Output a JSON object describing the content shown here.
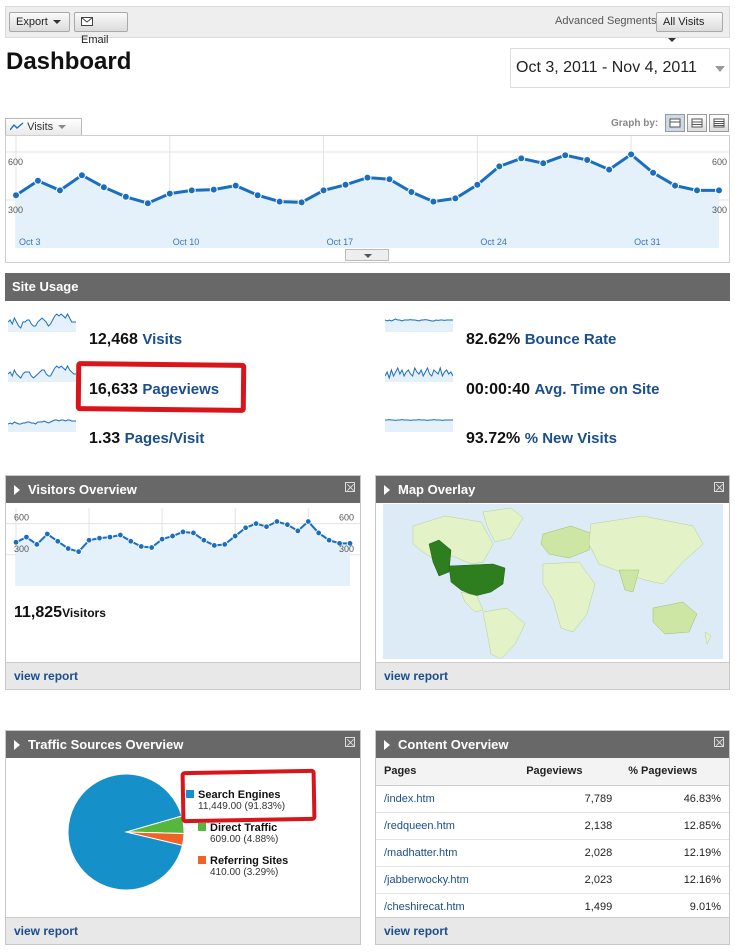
{
  "toolbar": {
    "export_label": "Export",
    "email_label": "Email",
    "segments_label": "Advanced Segments:",
    "segments_value": "All Visits"
  },
  "page_title": "Dashboard",
  "date_range": "Oct 3, 2011 - Nov 4, 2011",
  "main_chart": {
    "tab_label": "Visits",
    "graph_by_label": "Graph by:",
    "y_max_label": "600",
    "y_mid_label": "300",
    "x_labels": [
      "Oct 3",
      "Oct 10",
      "Oct 17",
      "Oct 24",
      "Oct 31"
    ]
  },
  "chart_data": {
    "type": "line",
    "x": [
      "Oct 3",
      "Oct 4",
      "Oct 5",
      "Oct 6",
      "Oct 7",
      "Oct 8",
      "Oct 9",
      "Oct 10",
      "Oct 11",
      "Oct 12",
      "Oct 13",
      "Oct 14",
      "Oct 15",
      "Oct 16",
      "Oct 17",
      "Oct 18",
      "Oct 19",
      "Oct 20",
      "Oct 21",
      "Oct 22",
      "Oct 23",
      "Oct 24",
      "Oct 25",
      "Oct 26",
      "Oct 27",
      "Oct 28",
      "Oct 29",
      "Oct 30",
      "Oct 31",
      "Nov 1",
      "Nov 2",
      "Nov 3",
      "Nov 4"
    ],
    "series": [
      {
        "values": [
          330,
          420,
          360,
          455,
          380,
          320,
          280,
          340,
          360,
          365,
          390,
          330,
          290,
          285,
          360,
          395,
          440,
          430,
          350,
          290,
          310,
          395,
          510,
          560,
          530,
          580,
          550,
          490,
          585,
          470,
          390,
          360,
          360
        ]
      }
    ],
    "ylim": [
      0,
      700
    ],
    "y_ticks": [
      300,
      600
    ],
    "grid": true
  },
  "site_usage": {
    "header": "Site Usage",
    "metrics": [
      {
        "value": "12,468",
        "label": "Visits"
      },
      {
        "value": "16,633",
        "label": "Pageviews"
      },
      {
        "value": "1.33",
        "label": "Pages/Visit"
      },
      {
        "value": "82.62%",
        "label": "Bounce Rate"
      },
      {
        "value": "00:00:40",
        "label": "Avg. Time on Site"
      },
      {
        "value": "93.72%",
        "label": "% New Visits"
      }
    ]
  },
  "visitors_overview": {
    "header": "Visitors Overview",
    "y_max_label": "600",
    "y_mid_label": "300",
    "values": [
      420,
      470,
      400,
      500,
      430,
      360,
      330,
      440,
      460,
      470,
      490,
      430,
      380,
      370,
      450,
      480,
      520,
      510,
      440,
      390,
      400,
      480,
      560,
      600,
      570,
      620,
      590,
      530,
      620,
      510,
      440,
      410,
      410
    ],
    "visitors_value": "11,825",
    "visitors_label": "Visitors",
    "footer": "view report"
  },
  "map_overlay": {
    "header": "Map Overlay",
    "footer": "view report"
  },
  "traffic_sources": {
    "header": "Traffic Sources Overview",
    "footer": "view report",
    "slices": [
      {
        "name": "Search Engines",
        "value_text": "11,449.00 (91.83%)",
        "percent": 91.83,
        "color": "#1590c9"
      },
      {
        "name": "Direct Traffic",
        "value_text": "609.00 (4.88%)",
        "percent": 4.88,
        "color": "#55b83d"
      },
      {
        "name": "Referring Sites",
        "value_text": "410.00 (3.29%)",
        "percent": 3.29,
        "color": "#ef6327"
      }
    ]
  },
  "content_overview": {
    "header": "Content Overview",
    "columns": [
      "Pages",
      "Pageviews",
      "% Pageviews"
    ],
    "rows": [
      {
        "page": "/index.htm",
        "pageviews": "7,789",
        "percent": "46.83%"
      },
      {
        "page": "/redqueen.htm",
        "pageviews": "2,138",
        "percent": "12.85%"
      },
      {
        "page": "/madhatter.htm",
        "pageviews": "2,028",
        "percent": "12.19%"
      },
      {
        "page": "/jabberwocky.htm",
        "pageviews": "2,023",
        "percent": "12.16%"
      },
      {
        "page": "/cheshirecat.htm",
        "pageviews": "1,499",
        "percent": "9.01%"
      }
    ],
    "footer": "view report"
  }
}
